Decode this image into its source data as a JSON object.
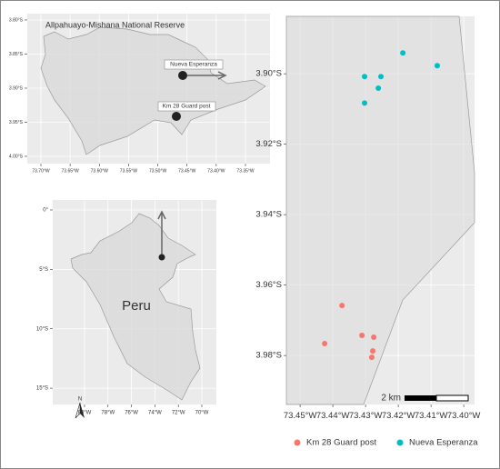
{
  "inset_reserve": {
    "title": "Allpahuayo-Mishana National Reserve",
    "labels": [
      "Nueva Esperanza",
      "Km 28 Guard post"
    ],
    "xlim": [
      -73.7233,
      -73.308
    ],
    "ylim": [
      -3.7907,
      -4.0107
    ],
    "xticks": [
      {
        "value": -73.7,
        "label": "73.70°W"
      },
      {
        "value": -73.65,
        "label": "73.65°W"
      },
      {
        "value": -73.6,
        "label": "73.60°W"
      },
      {
        "value": -73.55,
        "label": "73.55°W"
      },
      {
        "value": -73.5,
        "label": "73.50°W"
      },
      {
        "value": -73.45,
        "label": "73.45°W"
      },
      {
        "value": -73.4,
        "label": "73.40°W"
      },
      {
        "value": -73.35,
        "label": "73.35°W"
      }
    ],
    "yticks": [
      {
        "value": -3.8,
        "label": "3.80°S"
      },
      {
        "value": -3.85,
        "label": "3.85°S"
      },
      {
        "value": -3.9,
        "label": "3.90°S"
      },
      {
        "value": -3.95,
        "label": "3.95°S"
      },
      {
        "value": -4.0,
        "label": "4.00°S"
      }
    ]
  },
  "inset_peru": {
    "label": "Peru",
    "north": "N",
    "xlim": [
      -82.71,
      -68.76
    ],
    "ylim": [
      0.84,
      -16.37
    ],
    "xticks": [
      {
        "value": -80,
        "label": "80°W"
      },
      {
        "value": -78,
        "label": "78°W"
      },
      {
        "value": -76,
        "label": "76°W"
      },
      {
        "value": -74,
        "label": "74°W"
      },
      {
        "value": -72,
        "label": "72°W"
      },
      {
        "value": -70,
        "label": "70°W"
      }
    ],
    "yticks": [
      {
        "value": 0,
        "label": "0°"
      },
      {
        "value": -5,
        "label": "5°S"
      },
      {
        "value": -10,
        "label": "10°S"
      },
      {
        "value": -15,
        "label": "15°S"
      }
    ]
  },
  "chart_data": {
    "type": "scatter",
    "scale_bar": "2 km",
    "series": [
      {
        "name": "Km 28 Guard post",
        "color": "#f8766d",
        "x": [
          -73.4372,
          -73.4311,
          -73.4275,
          -73.4425,
          -73.4278,
          -73.4281
        ],
        "y": [
          -3.9658,
          -3.9743,
          -3.9748,
          -3.9766,
          -3.9787,
          -3.9805
        ]
      },
      {
        "name": "Nueva Esperanza",
        "color": "#00bfc4",
        "x": [
          -73.4186,
          -73.4081,
          -73.4303,
          -73.4253,
          -73.4261,
          -73.4303
        ],
        "y": [
          -3.8941,
          -3.8977,
          -3.9008,
          -3.9008,
          -3.9041,
          -3.9083
        ]
      }
    ],
    "xlim": [
      -73.4542,
      -73.3967
    ],
    "ylim": [
      -3.8837,
      -3.9939
    ],
    "xticks": [
      {
        "value": -73.45,
        "label": "73.45°W"
      },
      {
        "value": -73.44,
        "label": "73.44°W"
      },
      {
        "value": -73.43,
        "label": "73.43°W"
      },
      {
        "value": -73.42,
        "label": "73.42°W"
      },
      {
        "value": -73.41,
        "label": "73.41°W"
      },
      {
        "value": -73.4,
        "label": "73.40°W"
      }
    ],
    "yticks": [
      {
        "value": -3.9,
        "label": "3.90°S"
      },
      {
        "value": -3.92,
        "label": "3.92°S"
      },
      {
        "value": -3.94,
        "label": "3.94°S"
      },
      {
        "value": -3.96,
        "label": "3.96°S"
      },
      {
        "value": -3.98,
        "label": "3.98°S"
      }
    ]
  }
}
